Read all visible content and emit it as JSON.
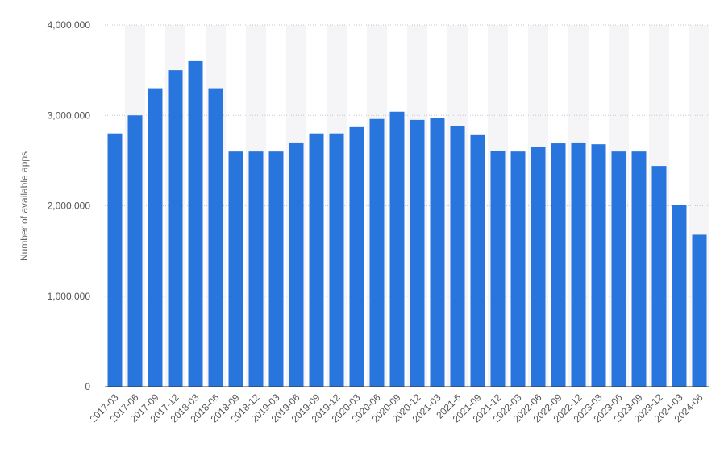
{
  "chart_data": {
    "type": "bar",
    "ylabel": "Number of available apps",
    "ylim": [
      0,
      4000000
    ],
    "yticks": [
      "0",
      "1,000,000",
      "2,000,000",
      "3,000,000",
      "4,000,000"
    ],
    "ytick_values": [
      0,
      1000000,
      2000000,
      3000000,
      4000000
    ],
    "categories": [
      "2017-03",
      "2017-06",
      "2017-09",
      "2017-12",
      "2018-03",
      "2018-06",
      "2018-09",
      "2018-12",
      "2019-03",
      "2019-06",
      "2019-09",
      "2019-12",
      "2020-03",
      "2020-06",
      "2020-09",
      "2020-12",
      "2021-03",
      "2021-6",
      "2021-09",
      "2021-12",
      "2022-03",
      "2022-06",
      "2022-09",
      "2022-12",
      "2023-03",
      "2023-06",
      "2023-09",
      "2023-12",
      "2024-03",
      "2024-06"
    ],
    "values": [
      2800000,
      3000000,
      3300000,
      3500000,
      3600000,
      3300000,
      2600000,
      2600000,
      2600000,
      2700000,
      2800000,
      2800000,
      2870000,
      2960000,
      3040000,
      2950000,
      2970000,
      2880000,
      2790000,
      2610000,
      2600000,
      2650000,
      2690000,
      2700000,
      2680000,
      2600000,
      2600000,
      2440000,
      2010000,
      1680000
    ],
    "grid": true,
    "colors": {
      "bar": "#2876dd",
      "band": "#f5f5f7",
      "grid": "#c8c8c8",
      "axis": "#333333"
    }
  }
}
